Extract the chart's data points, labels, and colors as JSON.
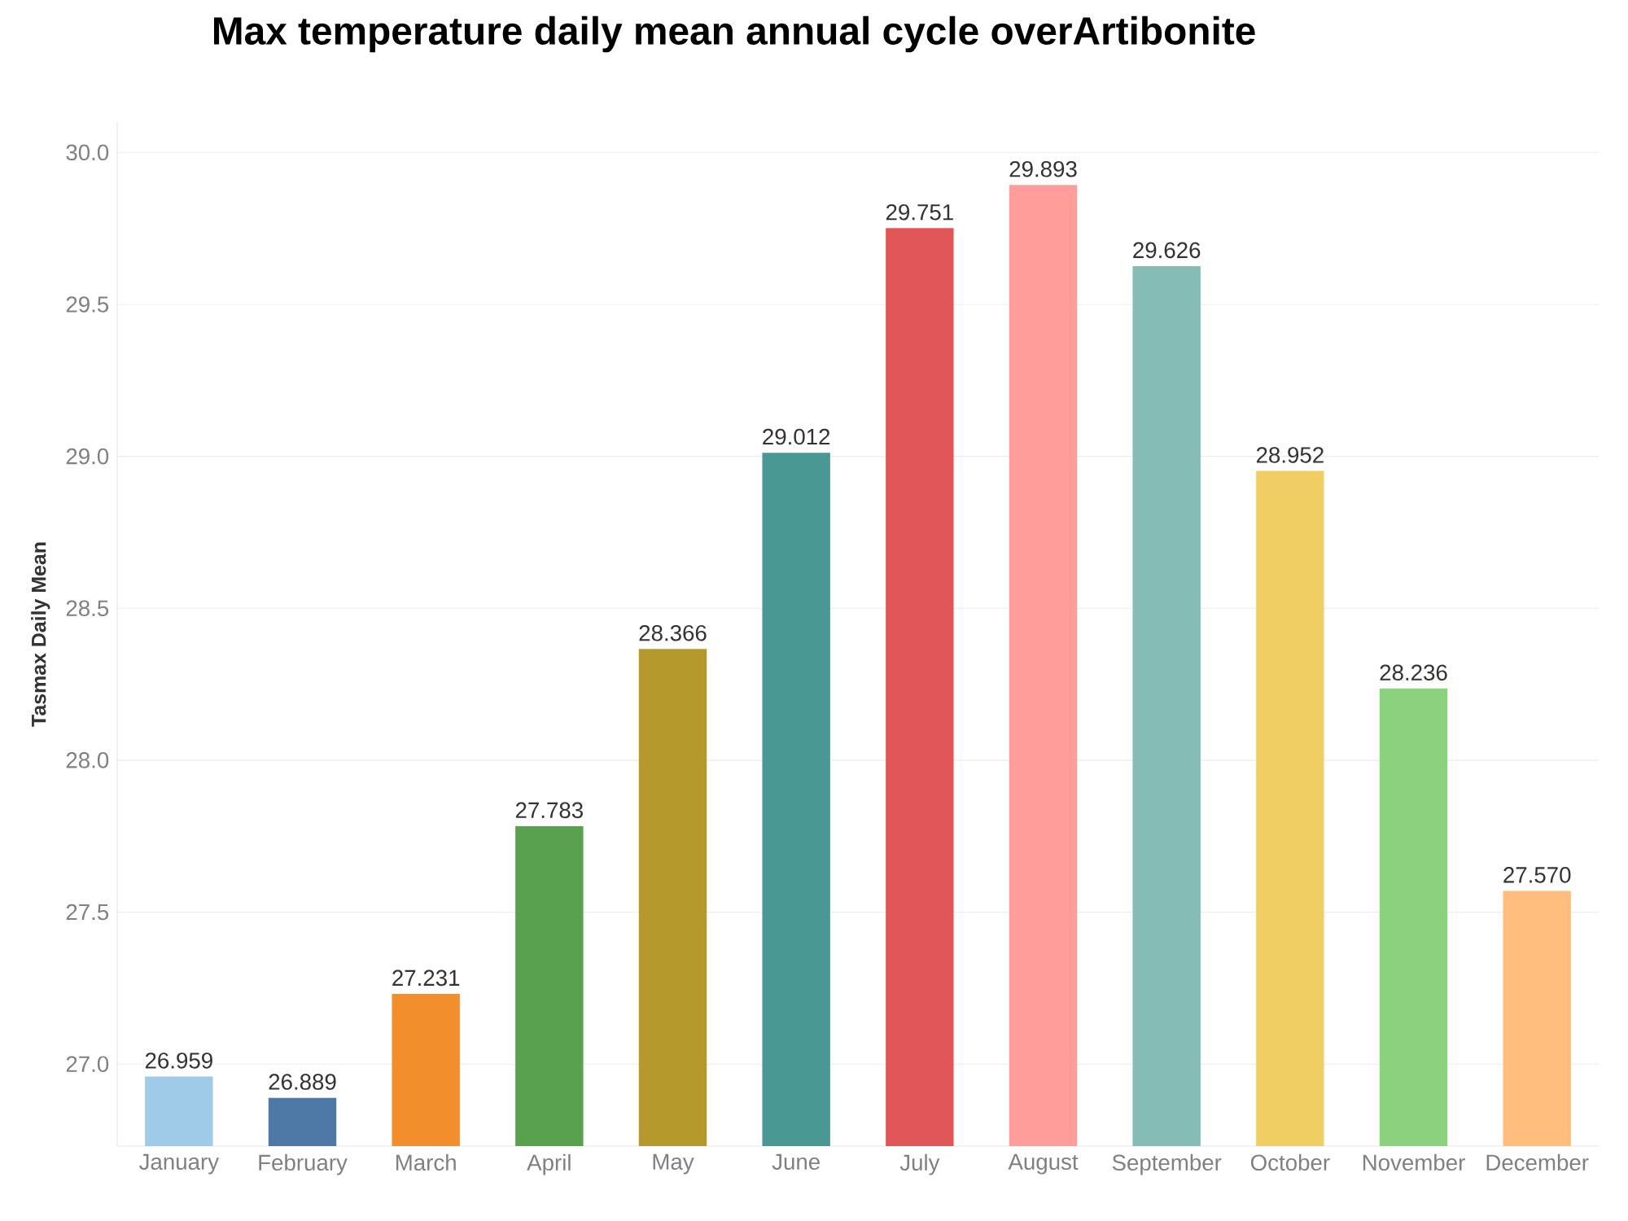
{
  "chart_data": {
    "type": "bar",
    "title": "Max temperature daily mean annual cycle overArtibonite",
    "ylabel": "Tasmax Daily Mean",
    "categories": [
      "January",
      "February",
      "March",
      "April",
      "May",
      "June",
      "July",
      "August",
      "September",
      "October",
      "November",
      "December"
    ],
    "values": [
      26.959,
      26.889,
      27.231,
      27.783,
      28.366,
      29.012,
      29.751,
      29.893,
      29.626,
      28.952,
      28.236,
      27.57
    ],
    "colors": [
      "#a0cbe8",
      "#4e79a7",
      "#f28e2b",
      "#59a14f",
      "#b6992d",
      "#499894",
      "#e15759",
      "#ff9d9a",
      "#86bcb6",
      "#f1ce63",
      "#8cd17d",
      "#ffbe7d"
    ],
    "value_labels": [
      "26.959",
      "26.889",
      "27.231",
      "27.783",
      "28.366",
      "29.012",
      "29.751",
      "29.893",
      "29.626",
      "28.952",
      "28.236",
      "27.570"
    ],
    "ylim": [
      26.73,
      30.1
    ],
    "yticks": [
      {
        "value": 27,
        "label": "27.0"
      },
      {
        "value": 27.5,
        "label": "27.5"
      },
      {
        "value": 28,
        "label": "28.0"
      },
      {
        "value": 28.5,
        "label": "28.5"
      },
      {
        "value": 29,
        "label": "29.0"
      },
      {
        "value": 29.5,
        "label": "29.5"
      },
      {
        "value": 30,
        "label": "30.0"
      }
    ],
    "grid": "y"
  }
}
